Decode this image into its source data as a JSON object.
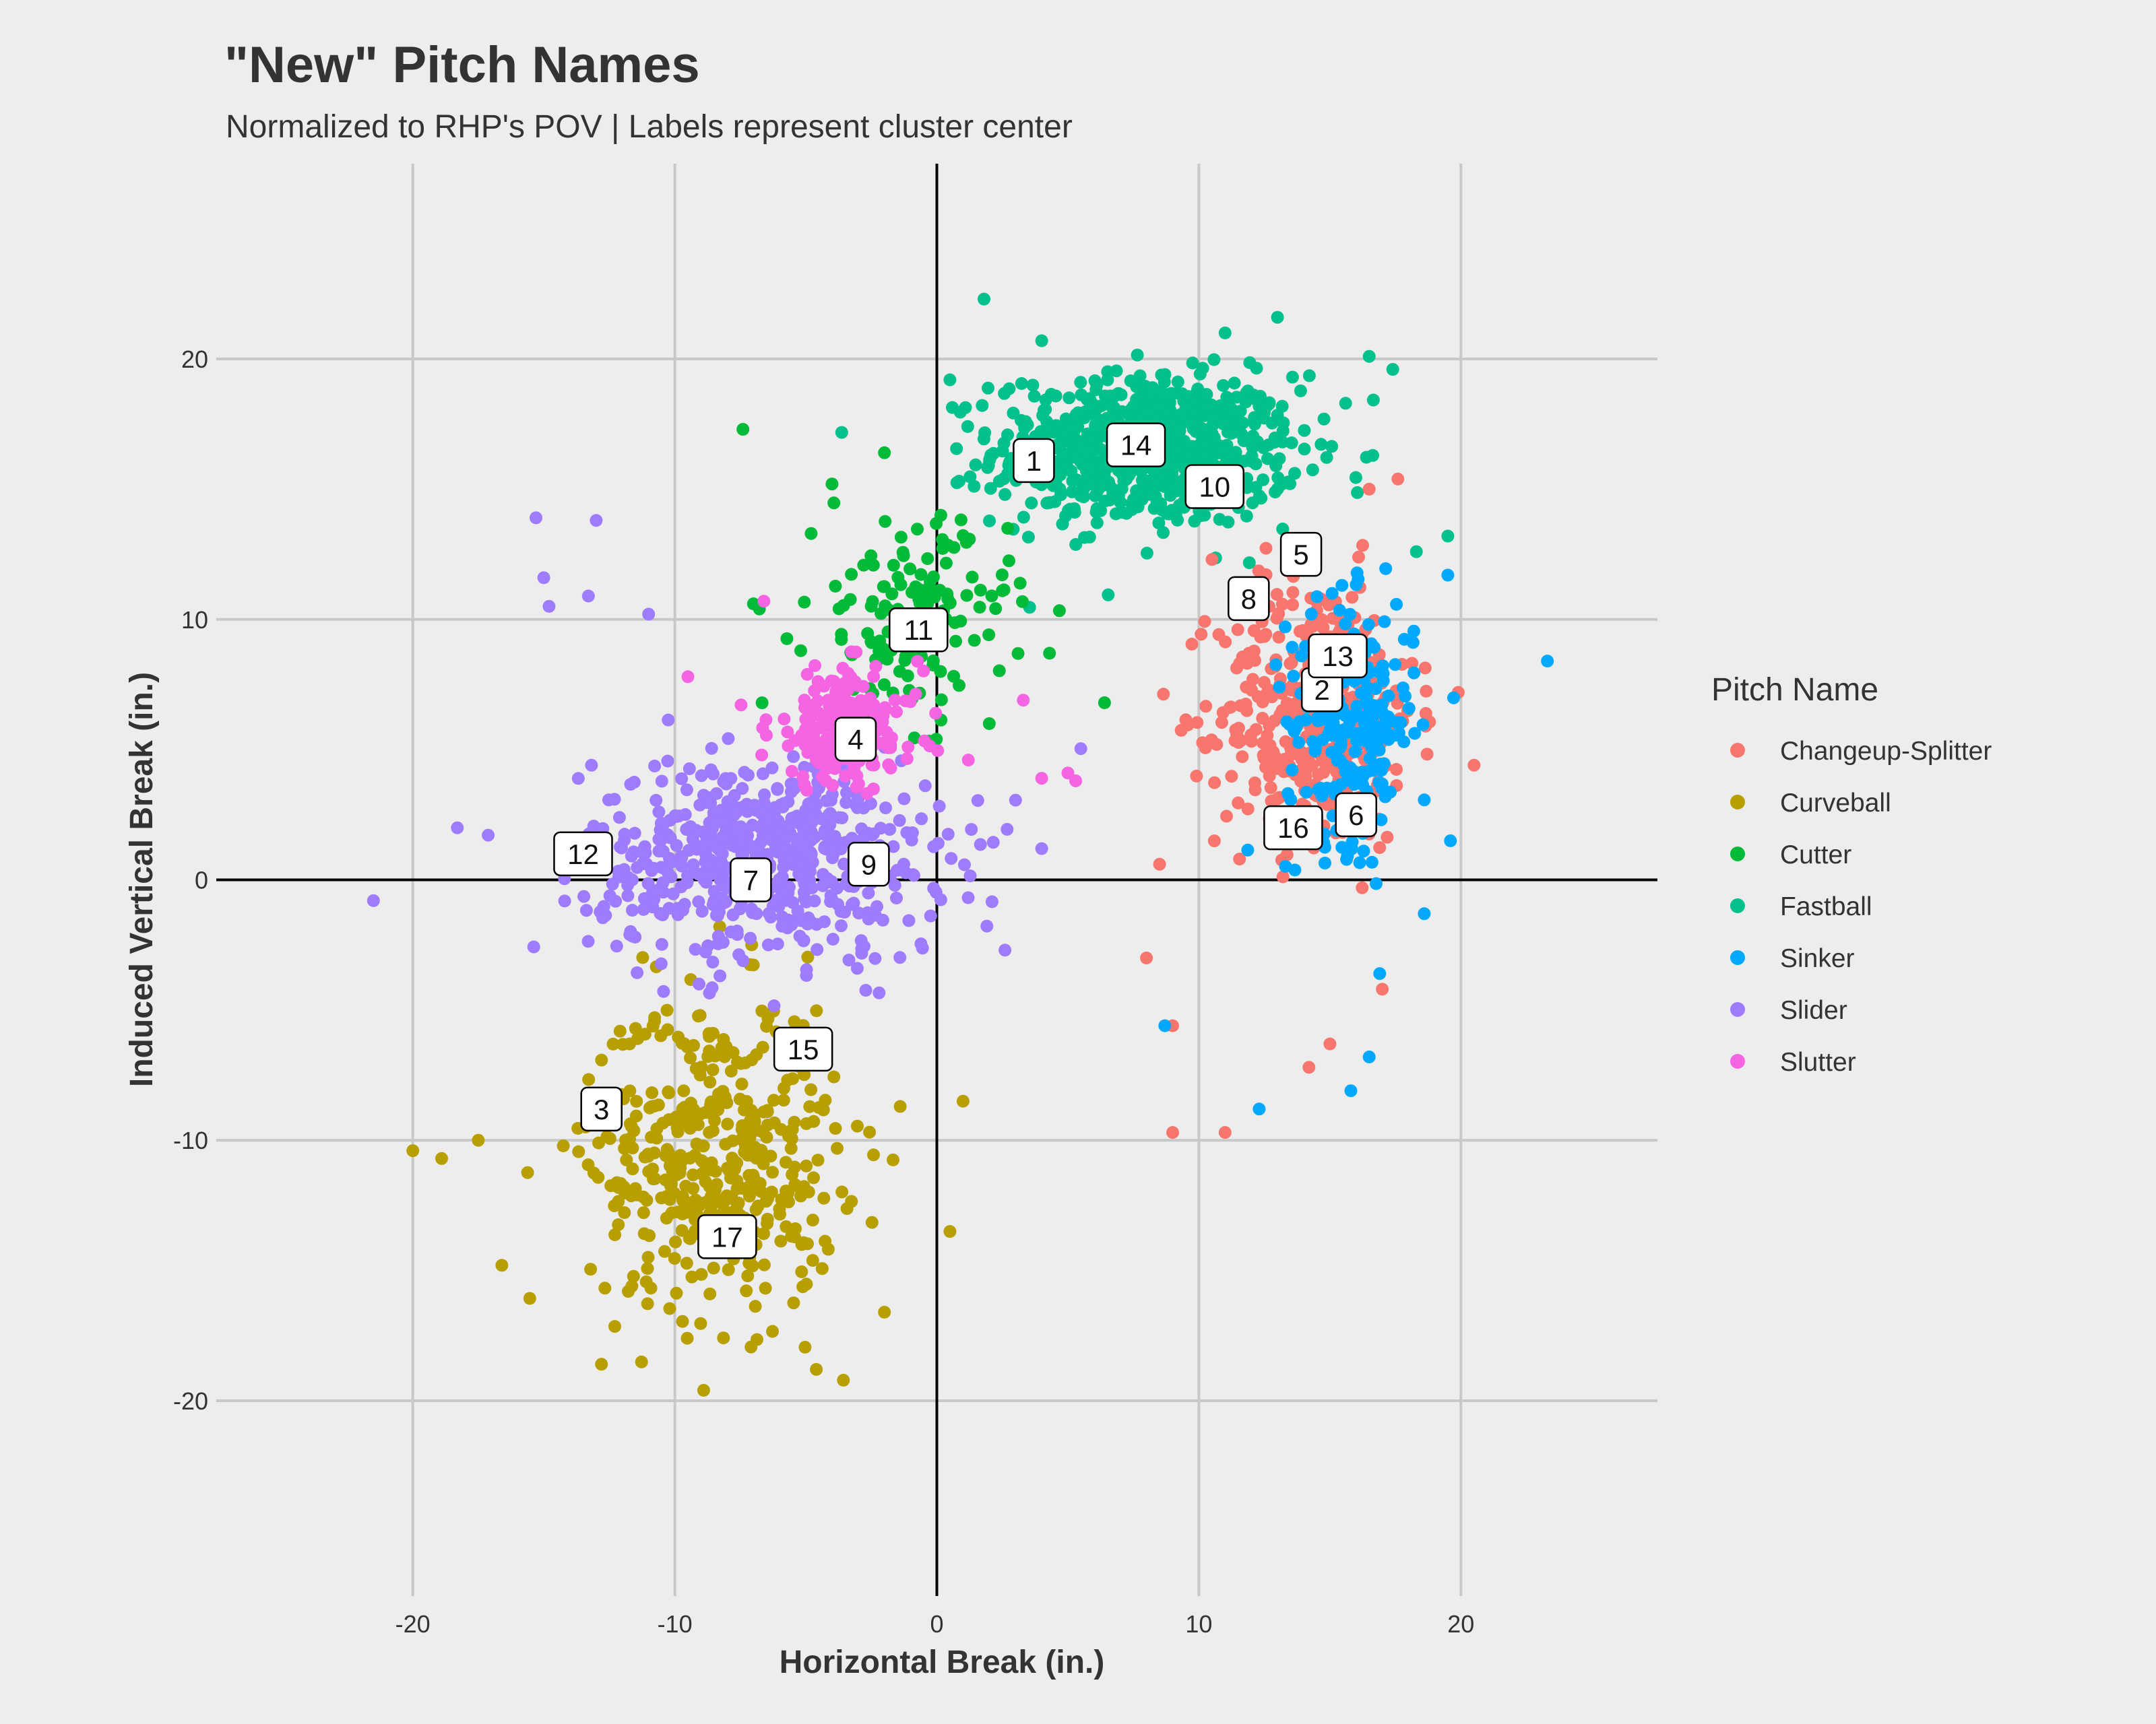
{
  "chart_data": {
    "type": "scatter",
    "title": "\"New\" Pitch Names",
    "subtitle": "Normalized to RHP's POV | Labels represent cluster center",
    "xlabel": "Horizontal Break (in.)",
    "ylabel": "Induced Vertical Break (in.)",
    "xlim": [
      -27.5,
      27.5
    ],
    "ylim": [
      -27.5,
      27.5
    ],
    "x_ticks": [
      -20,
      -10,
      0,
      10,
      20
    ],
    "y_ticks": [
      -20,
      -10,
      0,
      10,
      20
    ],
    "x_tick_labels": [
      "-20",
      "-10",
      "0",
      "10",
      "20"
    ],
    "y_tick_labels": [
      "-20",
      "-10",
      "0",
      "10",
      "20"
    ],
    "grid": true,
    "reference_lines": {
      "x": 0,
      "y": 0
    },
    "legend": {
      "title": "Pitch Name",
      "position": "right"
    },
    "series": [
      {
        "name": "Changeup-Splitter",
        "color": "#F8766D",
        "cluster": {
          "center": [
            14.5,
            6.5
          ],
          "spread": [
            2.6,
            3.6
          ],
          "count": 420
        },
        "outliers": [
          [
            20.5,
            4.4
          ],
          [
            19.9,
            7.2
          ],
          [
            9.0,
            -9.7
          ],
          [
            11.0,
            -9.7
          ],
          [
            14.2,
            -7.2
          ],
          [
            15.0,
            -6.3
          ],
          [
            9.0,
            -5.6
          ],
          [
            8.0,
            -3.0
          ],
          [
            16.5,
            15.0
          ],
          [
            17.0,
            -4.2
          ],
          [
            8.5,
            0.6
          ],
          [
            10.5,
            12.3
          ]
        ]
      },
      {
        "name": "Curveball",
        "color": "#B79F00",
        "cluster": {
          "center": [
            -8.5,
            -10.5
          ],
          "spread": [
            3.3,
            4.2
          ],
          "count": 440
        },
        "outliers": [
          [
            -20.0,
            -10.4
          ],
          [
            -18.9,
            -10.7
          ],
          [
            -17.5,
            -10.0
          ],
          [
            -16.6,
            -14.8
          ],
          [
            -8.9,
            -19.6
          ],
          [
            -4.6,
            -18.8
          ],
          [
            -2.0,
            -16.6
          ],
          [
            0.5,
            -13.5
          ],
          [
            1.0,
            -8.5
          ],
          [
            -1.4,
            -8.7
          ],
          [
            -12.8,
            -18.6
          ]
        ]
      },
      {
        "name": "Cutter",
        "color": "#00BA38",
        "cluster": {
          "center": [
            -1.0,
            10.0
          ],
          "spread": [
            2.6,
            2.6
          ],
          "count": 150
        },
        "outliers": [
          [
            -7.4,
            17.3
          ],
          [
            -4.0,
            15.2
          ],
          [
            -2.0,
            16.4
          ],
          [
            2.5,
            11.1
          ],
          [
            6.4,
            6.8
          ],
          [
            4.3,
            8.7
          ],
          [
            2.0,
            6.0
          ],
          [
            -7.0,
            10.6
          ]
        ]
      },
      {
        "name": "Fastball",
        "color": "#00C08B",
        "cluster": {
          "center": [
            8.0,
            16.5
          ],
          "spread": [
            4.0,
            2.0
          ],
          "count": 750
        },
        "outliers": [
          [
            1.8,
            22.3
          ],
          [
            13.0,
            21.6
          ],
          [
            11.0,
            21.0
          ],
          [
            16.5,
            20.1
          ],
          [
            17.4,
            19.6
          ],
          [
            19.5,
            13.2
          ],
          [
            18.3,
            12.6
          ],
          [
            15.6,
            18.3
          ],
          [
            0.5,
            19.2
          ],
          [
            4.0,
            20.7
          ]
        ]
      },
      {
        "name": "Sinker",
        "color": "#00A9FF",
        "cluster": {
          "center": [
            15.8,
            6.0
          ],
          "spread": [
            1.7,
            3.2
          ],
          "count": 230
        },
        "outliers": [
          [
            23.3,
            8.4
          ],
          [
            19.5,
            11.7
          ],
          [
            19.6,
            1.5
          ],
          [
            18.6,
            -1.3
          ],
          [
            12.3,
            -8.8
          ],
          [
            15.8,
            -8.1
          ],
          [
            16.5,
            -6.8
          ],
          [
            8.7,
            -5.6
          ],
          [
            16.9,
            -3.6
          ]
        ]
      },
      {
        "name": "Slider",
        "color": "#9F7BFF",
        "cluster": {
          "center": [
            -6.5,
            0.8
          ],
          "spread": [
            4.6,
            2.7
          ],
          "count": 600
        },
        "outliers": [
          [
            -21.5,
            -0.8
          ],
          [
            -15.3,
            13.9
          ],
          [
            -13.0,
            13.8
          ],
          [
            -14.8,
            10.5
          ],
          [
            -11.0,
            10.2
          ],
          [
            -15.0,
            11.6
          ],
          [
            -13.3,
            10.9
          ],
          [
            2.6,
            -2.7
          ],
          [
            4.0,
            1.2
          ],
          [
            -18.3,
            2.0
          ]
        ]
      },
      {
        "name": "Slutter",
        "color": "#F564E3",
        "cluster": {
          "center": [
            -3.5,
            5.8
          ],
          "spread": [
            2.0,
            1.6
          ],
          "count": 200
        },
        "outliers": [
          [
            -6.6,
            10.7
          ],
          [
            -9.5,
            7.8
          ],
          [
            1.2,
            4.6
          ],
          [
            4.0,
            3.9
          ],
          [
            5.3,
            3.8
          ],
          [
            3.3,
            6.9
          ],
          [
            5.0,
            4.1
          ]
        ]
      }
    ],
    "cluster_labels": [
      {
        "label": "1",
        "x": 3.7,
        "y": 16.1
      },
      {
        "label": "2",
        "x": 14.7,
        "y": 7.3
      },
      {
        "label": "3",
        "x": -12.8,
        "y": -8.8
      },
      {
        "label": "4",
        "x": -3.1,
        "y": 5.4
      },
      {
        "label": "5",
        "x": 13.9,
        "y": 12.5
      },
      {
        "label": "6",
        "x": 16.0,
        "y": 2.5
      },
      {
        "label": "7",
        "x": -7.1,
        "y": 0.0
      },
      {
        "label": "8",
        "x": 11.9,
        "y": 10.8
      },
      {
        "label": "9",
        "x": -2.6,
        "y": 0.6
      },
      {
        "label": "10",
        "x": 10.6,
        "y": 15.1
      },
      {
        "label": "11",
        "x": -0.7,
        "y": 9.6
      },
      {
        "label": "12",
        "x": -13.5,
        "y": 1.0
      },
      {
        "label": "13",
        "x": 15.3,
        "y": 8.6
      },
      {
        "label": "14",
        "x": 7.6,
        "y": 16.7
      },
      {
        "label": "15",
        "x": -5.1,
        "y": -6.5
      },
      {
        "label": "16",
        "x": 13.6,
        "y": 2.0
      },
      {
        "label": "17",
        "x": -8.0,
        "y": -13.7
      }
    ]
  }
}
